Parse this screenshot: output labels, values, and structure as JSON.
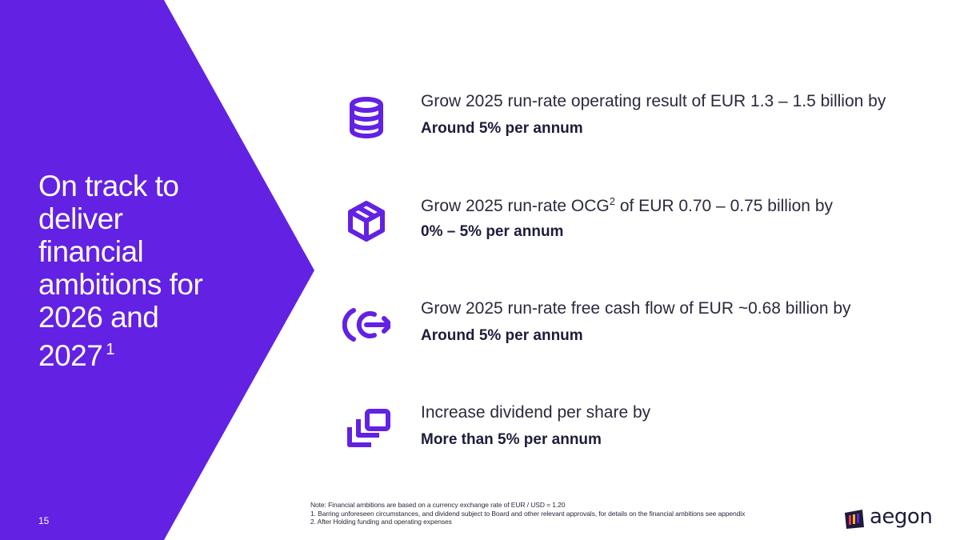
{
  "slide": {
    "headline": "On track to deliver financial ambitions for 2026 and 2027",
    "headline_sup": "1",
    "page_number": "15",
    "accent_color": "#6321e3"
  },
  "ambitions": [
    {
      "icon": "database-icon",
      "line1": "Grow 2025 run-rate operating result of EUR 1.3 – 1.5 billion by",
      "line2": "Around 5% per annum"
    },
    {
      "icon": "package-box-icon",
      "line1_pre": "Grow 2025 run-rate OCG",
      "line1_sup": "2",
      "line1_post": " of EUR 0.70 – 0.75 billion by",
      "line2": "0% – 5% per annum"
    },
    {
      "icon": "cash-flow-out-icon",
      "line1": "Grow 2025 run-rate free cash flow of EUR ~0.68 billion by",
      "line2": "Around 5% per annum"
    },
    {
      "icon": "stacked-cards-icon",
      "line1": "Increase dividend per share by",
      "line2": "More than 5% per annum"
    }
  ],
  "notes": [
    "Note: Financial ambitions are based on a currency exchange rate of EUR / USD = 1.20",
    "1. Barring unforeseen circumstances, and dividend subject to Board and other relevant approvals, for details on the financial ambitions see appendix",
    "2. After Holding funding and operating expenses"
  ],
  "logo": {
    "text": "aegon"
  }
}
